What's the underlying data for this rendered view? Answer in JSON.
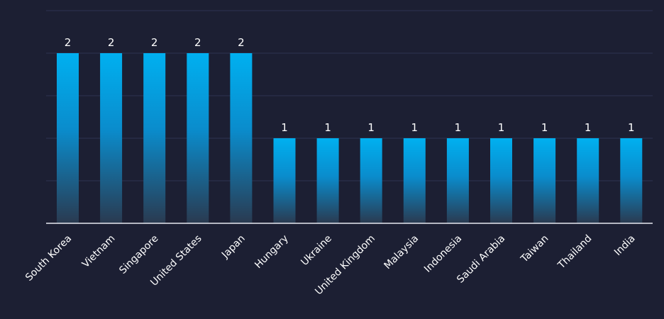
{
  "chart_data": {
    "type": "bar",
    "categories": [
      "South Korea",
      "Vietnam",
      "Singapore",
      "United States",
      "Japan",
      "Hungary",
      "Ukraine",
      "United Kingdom",
      "Malaysia",
      "Indonesia",
      "Saudi Arabia",
      "Taiwan",
      "Thailand",
      "India"
    ],
    "values": [
      2,
      2,
      2,
      2,
      2,
      1,
      1,
      1,
      1,
      1,
      1,
      1,
      1,
      1
    ],
    "ylim": [
      0,
      2.5
    ],
    "grid": true,
    "data_labels": true
  },
  "colors": {
    "background": "#1c1f33",
    "bar_top": "#00b0f0",
    "bar_bottom": "#2a3a50",
    "grid": "#2e3350",
    "axis": "#e8eaf2",
    "text": "#ffffff"
  }
}
